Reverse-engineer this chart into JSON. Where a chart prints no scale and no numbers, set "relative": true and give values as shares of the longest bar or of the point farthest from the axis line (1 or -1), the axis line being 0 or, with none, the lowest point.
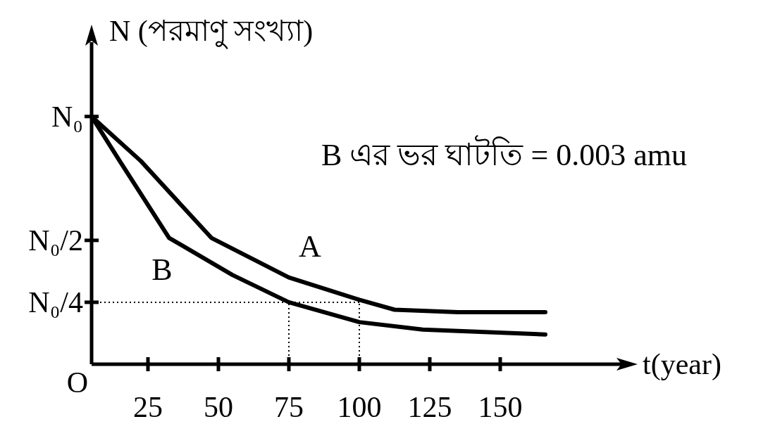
{
  "chart_data": {
    "type": "line",
    "xlabel": "t(year)",
    "ylabel": "N (পরমাণু সংখ্যা)",
    "xlim": [
      5,
      195
    ],
    "xticks": [
      25,
      50,
      75,
      100,
      125,
      150
    ],
    "relative": true,
    "marker": "none",
    "line_style": "solid",
    "series": [
      {
        "name": "A",
        "color": "#000000",
        "x": [
          5,
          22.5,
          47.5,
          75,
          100,
          112.5,
          135,
          166
        ],
        "values": [
          1,
          0.82,
          0.51,
          0.35,
          0.26,
          0.22,
          0.21,
          0.21
        ]
      },
      {
        "name": "B",
        "color": "#000000",
        "x": [
          5,
          15,
          32.5,
          55,
          75,
          100,
          122.5,
          166
        ],
        "values": [
          1,
          0.82,
          0.51,
          0.36,
          0.25,
          0.17,
          0.14,
          0.12
        ]
      }
    ],
    "ref_lines": [
      {
        "axis": "y",
        "value": 0.25,
        "line_style": "dotted"
      },
      {
        "axis": "x",
        "value": 75,
        "line_style": "dotted"
      },
      {
        "axis": "x",
        "value": 100,
        "line_style": "dotted"
      }
    ],
    "annotations": [
      "B এর ভর ঘাটতি = 0.003 amu",
      "O",
      "N₀",
      "N₀/2",
      "N₀/4"
    ]
  }
}
